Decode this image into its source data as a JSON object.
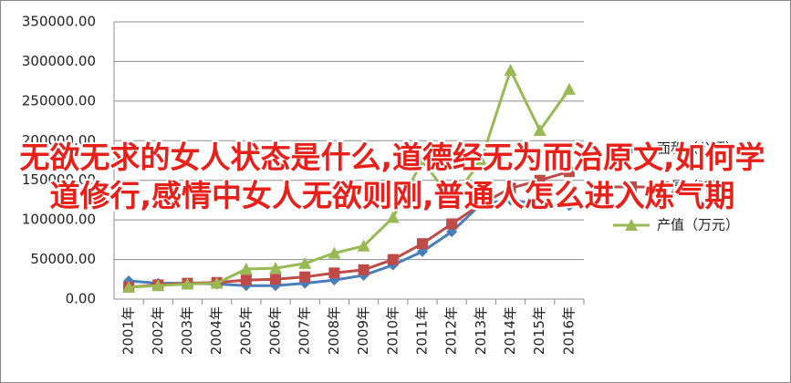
{
  "chart_data": {
    "type": "line",
    "categories": [
      "2001年",
      "2002年",
      "2003年",
      "2004年",
      "2005年",
      "2006年",
      "2007年",
      "2008年",
      "2009年",
      "2010年",
      "2011年",
      "2012年",
      "2013年",
      "2014年",
      "2015年",
      "2016年"
    ],
    "series": [
      {
        "name": "面积（公顷）",
        "color": "#4a7ebb",
        "marker": "diamond",
        "values": [
          23000,
          20000,
          20000,
          19000,
          17000,
          17000,
          20000,
          24000,
          30000,
          43000,
          60000,
          85000,
          120000,
          125000,
          120000,
          118000
        ]
      },
      {
        "name": "产量（吨）",
        "color": "#be4b48",
        "marker": "square",
        "values": [
          15000,
          18000,
          20000,
          21000,
          24000,
          25000,
          28000,
          33000,
          37000,
          50000,
          70000,
          95000,
          120000,
          140000,
          150000,
          161000
        ]
      },
      {
        "name": "产值（万元）",
        "color": "#98b954",
        "marker": "triangle",
        "values": [
          15000,
          17000,
          19000,
          20000,
          38000,
          39000,
          45000,
          58000,
          67000,
          103000,
          175000,
          125000,
          175000,
          289000,
          213000,
          265000
        ]
      }
    ],
    "ylim": [
      0,
      350000
    ],
    "yticks": [
      {
        "value": 0,
        "label": "0.00"
      },
      {
        "value": 50000,
        "label": "50000.00"
      },
      {
        "value": 100000,
        "label": "100000.00"
      },
      {
        "value": 150000,
        "label": "150000.00"
      },
      {
        "value": 200000,
        "label": "200000.00"
      },
      {
        "value": 250000,
        "label": "250000.00"
      },
      {
        "value": 300000,
        "label": "300000.00"
      },
      {
        "value": 350000,
        "label": "350000.00"
      }
    ],
    "grid": true
  },
  "overlay": {
    "title": "无欲无求的女人状态是什么,道德经无为而治原文,如何学道修行,感情中女人无欲则刚,普通人怎么进入炼气期"
  }
}
